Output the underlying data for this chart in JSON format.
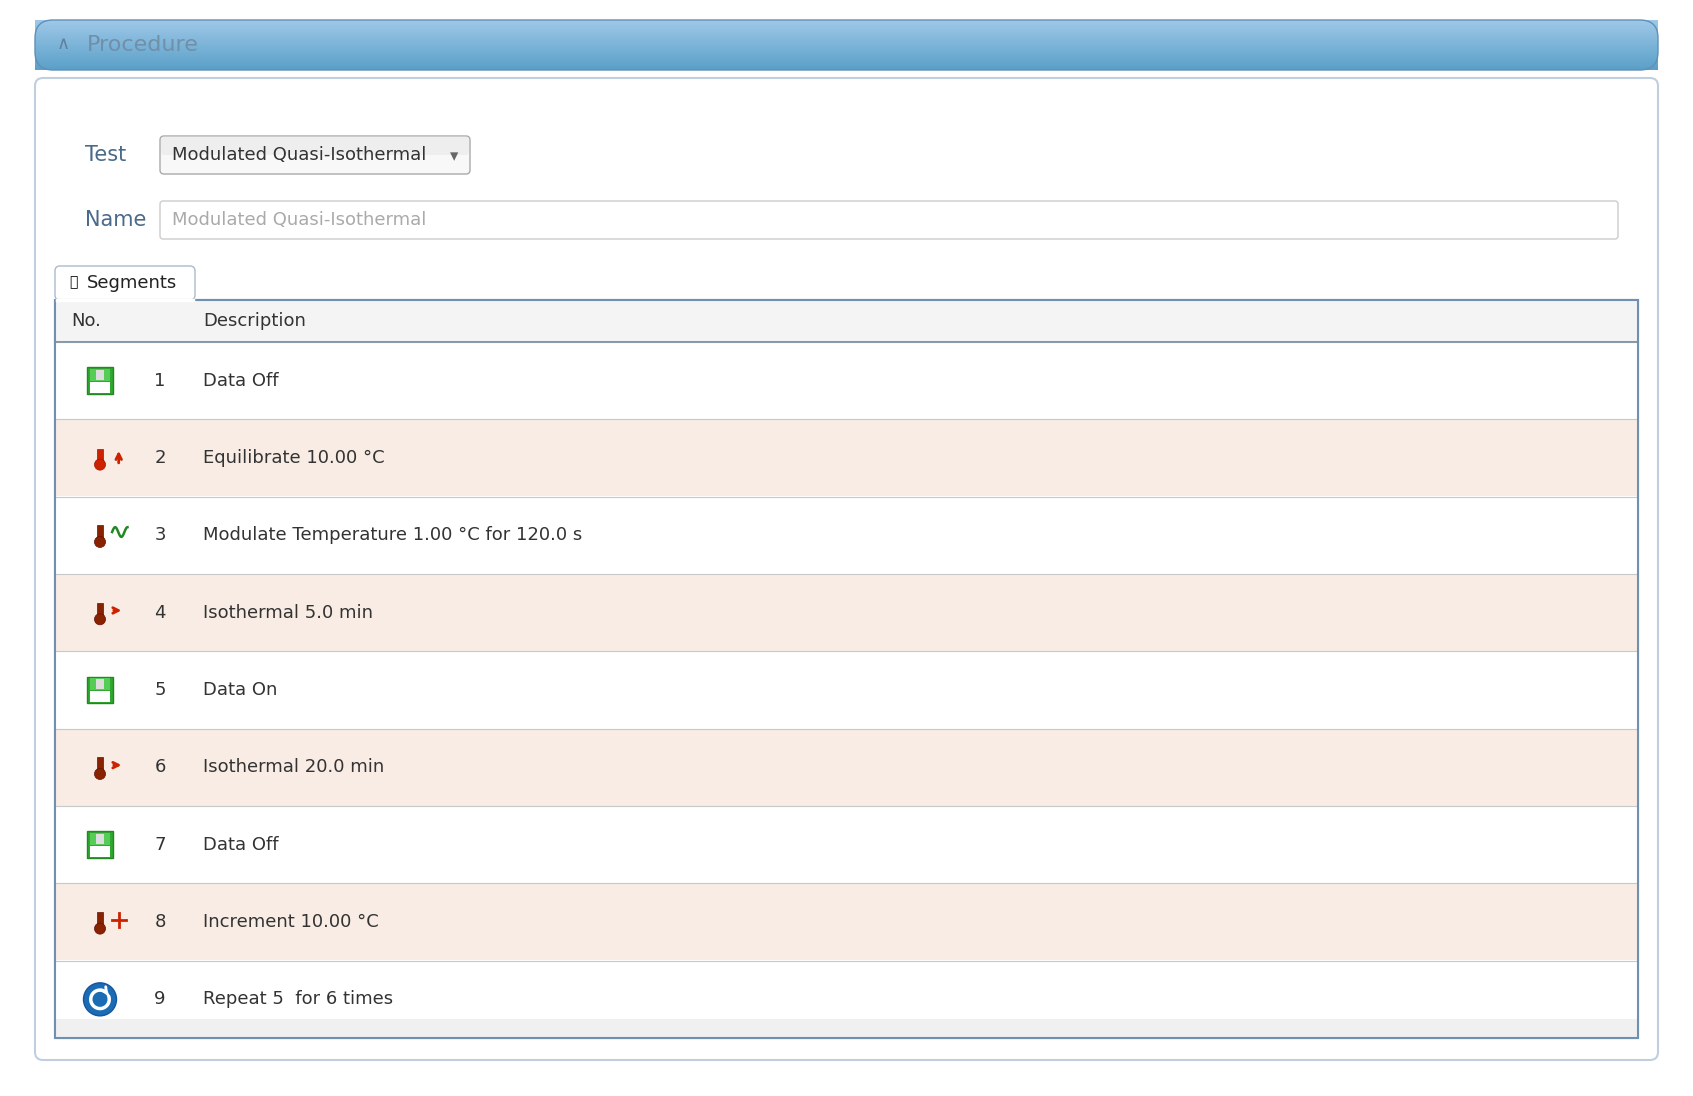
{
  "title_bar_text": "Procedure",
  "title_bar_text_color": "#888888",
  "bg_color": "#ffffff",
  "test_label": "Test",
  "test_value": "Modulated Quasi-Isothermal",
  "name_label": "Name",
  "name_value": "Modulated Quasi-Isothermal",
  "tab_label": "Segments",
  "col_no": "No.",
  "col_desc": "Description",
  "rows": [
    {
      "no": 1,
      "desc": "Data Off",
      "bg": "#ffffff",
      "icon": "save_green"
    },
    {
      "no": 2,
      "desc": "Equilibrate 10.00 °C",
      "bg": "#f8ece4",
      "icon": "thermo_red_up"
    },
    {
      "no": 3,
      "desc": "Modulate Temperature 1.00 °C for 120.0 s",
      "bg": "#ffffff",
      "icon": "thermo_wave"
    },
    {
      "no": 4,
      "desc": "Isothermal 5.0 min",
      "bg": "#f8ece4",
      "icon": "thermo_arrow"
    },
    {
      "no": 5,
      "desc": "Data On",
      "bg": "#ffffff",
      "icon": "save_green"
    },
    {
      "no": 6,
      "desc": "Isothermal 20.0 min",
      "bg": "#f8ece4",
      "icon": "thermo_arrow"
    },
    {
      "no": 7,
      "desc": "Data Off",
      "bg": "#ffffff",
      "icon": "save_green"
    },
    {
      "no": 8,
      "desc": "Increment 10.00 °C",
      "bg": "#f8ece4",
      "icon": "thermo_plus"
    },
    {
      "no": 9,
      "desc": "Repeat 5  for 6 times",
      "bg": "#ffffff",
      "icon": "repeat_blue"
    }
  ],
  "title_bar_blue_top": "#9ec8e8",
  "title_bar_blue_bot": "#5a9fc8",
  "outer_border_color": "#c0cfe0",
  "table_border_color": "#7090b0",
  "header_bg": "#f4f4f4",
  "header_text_color": "#333333",
  "row_text_color": "#333333",
  "label_color": "#4a6a8a",
  "dropdown_border": "#aaaaaa",
  "name_border": "#cccccc",
  "tab_border": "#aabbcc"
}
